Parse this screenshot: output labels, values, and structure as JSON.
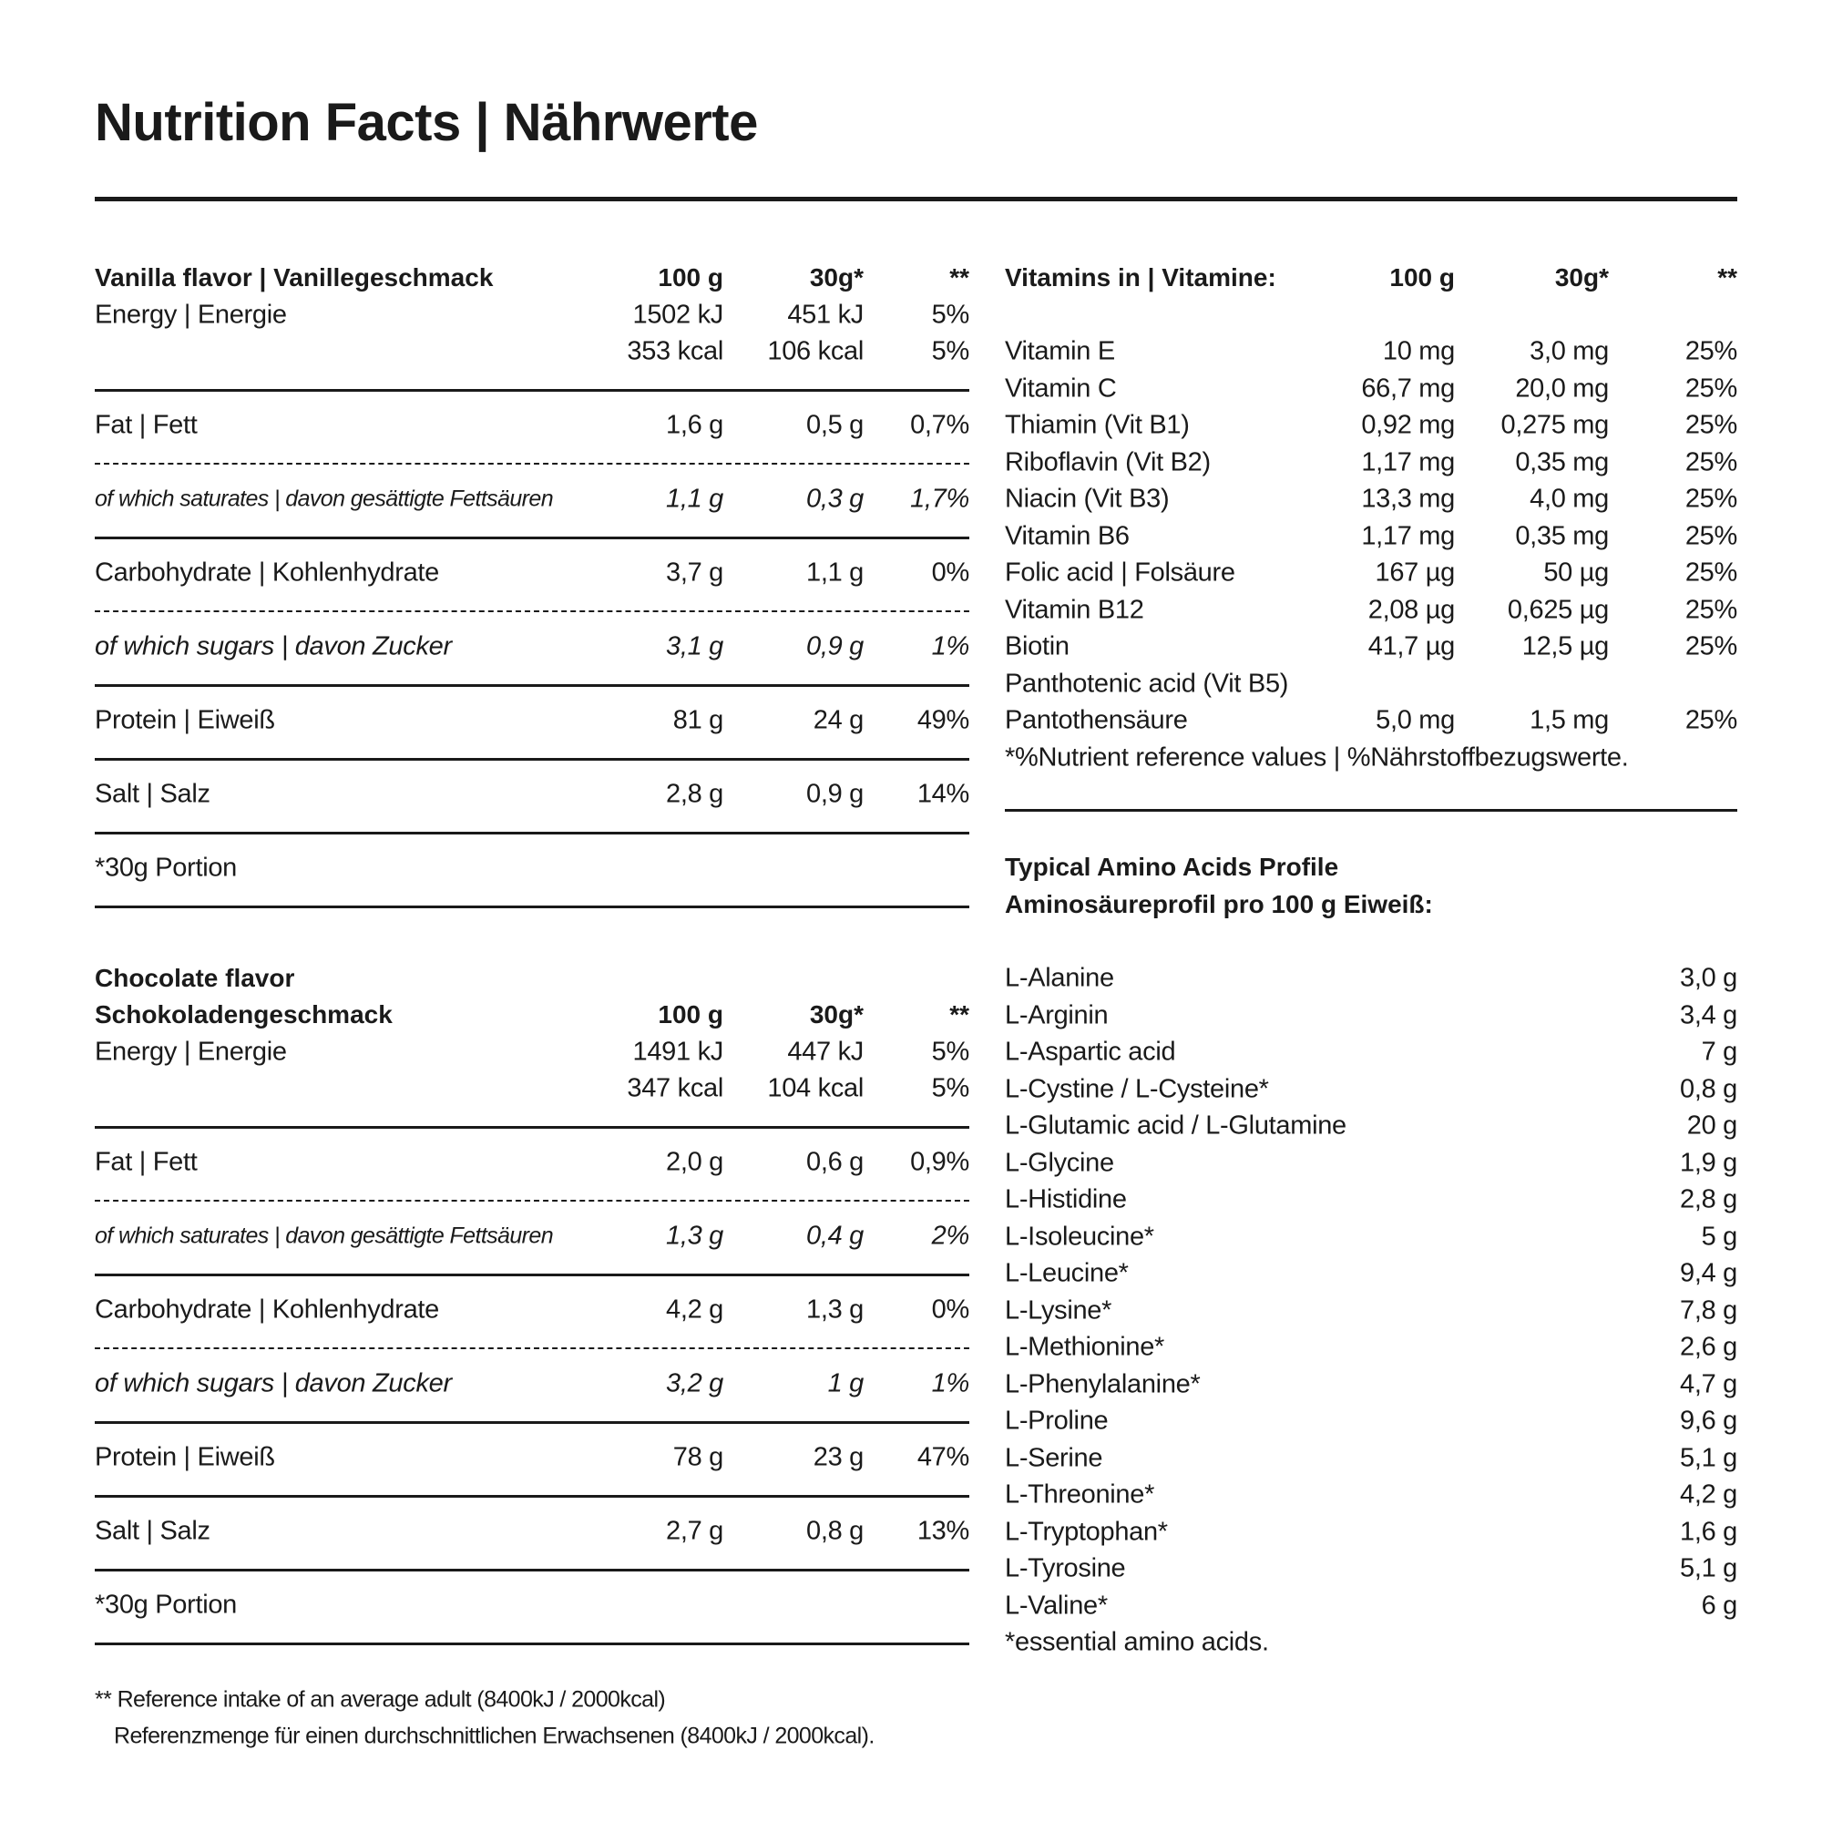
{
  "title": "Nutrition Facts | Nährwerte",
  "flavors": [
    {
      "heading": [
        "Vanilla flavor | Vanillegeschmack"
      ],
      "columns": [
        "100 g",
        "30g*",
        "**"
      ],
      "energy": {
        "label": "Energy | Energie",
        "lines": [
          [
            "1502 kJ",
            "451 kJ",
            "5%"
          ],
          [
            "353 kcal",
            "106 kcal",
            "5%"
          ]
        ]
      },
      "nutrients": [
        {
          "label": "Fat | Fett",
          "values": [
            "1,6 g",
            "0,5 g",
            "0,7%"
          ],
          "of_which": {
            "label": "of which saturates | davon gesättigte Fettsäuren",
            "values": [
              "1,1 g",
              "0,3 g",
              "1,7%"
            ]
          }
        },
        {
          "label": "Carbohydrate | Kohlenhydrate",
          "values": [
            "3,7 g",
            "1,1 g",
            "0%"
          ],
          "of_which": {
            "label": "of which sugars | davon Zucker",
            "values": [
              "3,1 g",
              "0,9 g",
              "1%"
            ]
          }
        },
        {
          "label": "Protein | Eiweiß",
          "values": [
            "81 g",
            "24 g",
            "49%"
          ]
        },
        {
          "label": "Salt | Salz",
          "values": [
            "2,8 g",
            "0,9 g",
            "14%"
          ]
        }
      ],
      "portion": "*30g Portion"
    },
    {
      "heading": [
        "Chocolate flavor",
        "Schokoladengeschmack"
      ],
      "columns": [
        "100 g",
        "30g*",
        "**"
      ],
      "energy": {
        "label": "Energy | Energie",
        "lines": [
          [
            "1491 kJ",
            "447 kJ",
            "5%"
          ],
          [
            "347 kcal",
            "104 kcal",
            "5%"
          ]
        ]
      },
      "nutrients": [
        {
          "label": "Fat | Fett",
          "values": [
            "2,0 g",
            "0,6 g",
            "0,9%"
          ],
          "of_which": {
            "label": "of which saturates | davon gesättigte Fettsäuren",
            "values": [
              "1,3 g",
              "0,4 g",
              "2%"
            ]
          }
        },
        {
          "label": "Carbohydrate | Kohlenhydrate",
          "values": [
            "4,2 g",
            "1,3 g",
            "0%"
          ],
          "of_which": {
            "label": "of which sugars | davon Zucker",
            "values": [
              "3,2 g",
              "1 g",
              "1%"
            ]
          }
        },
        {
          "label": "Protein | Eiweiß",
          "values": [
            "78 g",
            "23 g",
            "47%"
          ]
        },
        {
          "label": "Salt | Salz",
          "values": [
            "2,7 g",
            "0,8 g",
            "13%"
          ]
        }
      ],
      "portion": "*30g Portion"
    }
  ],
  "reference_note": [
    "** Reference intake of an average adult (8400kJ / 2000kcal)",
    "Referenzmenge für einen durchschnittlichen Erwachsenen (8400kJ / 2000kcal)."
  ],
  "vitamins": {
    "heading": "Vitamins in | Vitamine:",
    "columns": [
      "100 g",
      "30g*",
      "**"
    ],
    "rows": [
      {
        "label": "Vitamin E",
        "values": [
          "10 mg",
          "3,0 mg",
          "25%"
        ]
      },
      {
        "label": "Vitamin C",
        "values": [
          "66,7 mg",
          "20,0 mg",
          "25%"
        ]
      },
      {
        "label": "Thiamin (Vit B1)",
        "values": [
          "0,92 mg",
          "0,275 mg",
          "25%"
        ]
      },
      {
        "label": "Riboflavin (Vit B2)",
        "values": [
          "1,17 mg",
          "0,35 mg",
          "25%"
        ]
      },
      {
        "label": "Niacin (Vit B3)",
        "values": [
          "13,3 mg",
          "4,0 mg",
          "25%"
        ]
      },
      {
        "label": "Vitamin B6",
        "values": [
          "1,17 mg",
          "0,35 mg",
          "25%"
        ]
      },
      {
        "label": "Folic acid | Folsäure",
        "values": [
          "167 µg",
          "50 µg",
          "25%"
        ]
      },
      {
        "label": "Vitamin B12",
        "values": [
          "2,08 µg",
          "0,625 µg",
          "25%"
        ]
      },
      {
        "label": "Biotin",
        "values": [
          "41,7 µg",
          "12,5 µg",
          "25%"
        ]
      },
      {
        "label": "Panthotenic acid (Vit B5)"
      },
      {
        "label": "Pantothensäure",
        "values": [
          "5,0 mg",
          "1,5 mg",
          "25%"
        ]
      }
    ],
    "note": "*%Nutrient reference values | %Nährstoffbezugswerte."
  },
  "amino_acids": {
    "title": [
      "Typical Amino Acids Profile",
      "Aminosäureprofil pro 100 g Eiweiß:"
    ],
    "rows": [
      {
        "name": "L-Alanine",
        "value": "3,0 g"
      },
      {
        "name": "L-Arginin",
        "value": "3,4 g"
      },
      {
        "name": "L-Aspartic acid",
        "value": "7 g"
      },
      {
        "name": "L-Cystine / L-Cysteine*",
        "value": "0,8 g"
      },
      {
        "name": "L-Glutamic acid / L-Glutamine",
        "value": "20 g"
      },
      {
        "name": "L-Glycine",
        "value": "1,9 g"
      },
      {
        "name": "L-Histidine",
        "value": "2,8 g"
      },
      {
        "name": "L-Isoleucine*",
        "value": "5 g"
      },
      {
        "name": "L-Leucine*",
        "value": "9,4 g"
      },
      {
        "name": "L-Lysine*",
        "value": "7,8 g"
      },
      {
        "name": "L-Methionine*",
        "value": "2,6 g"
      },
      {
        "name": "L-Phenylalanine*",
        "value": "4,7 g"
      },
      {
        "name": "L-Proline",
        "value": "9,6 g"
      },
      {
        "name": "L-Serine",
        "value": "5,1 g"
      },
      {
        "name": "L-Threonine*",
        "value": "4,2 g"
      },
      {
        "name": "L-Tryptophan*",
        "value": "1,6 g"
      },
      {
        "name": "L-Tyrosine",
        "value": "5,1 g"
      },
      {
        "name": "L-Valine*",
        "value": "6 g"
      }
    ],
    "note": "*essential amino acids."
  }
}
